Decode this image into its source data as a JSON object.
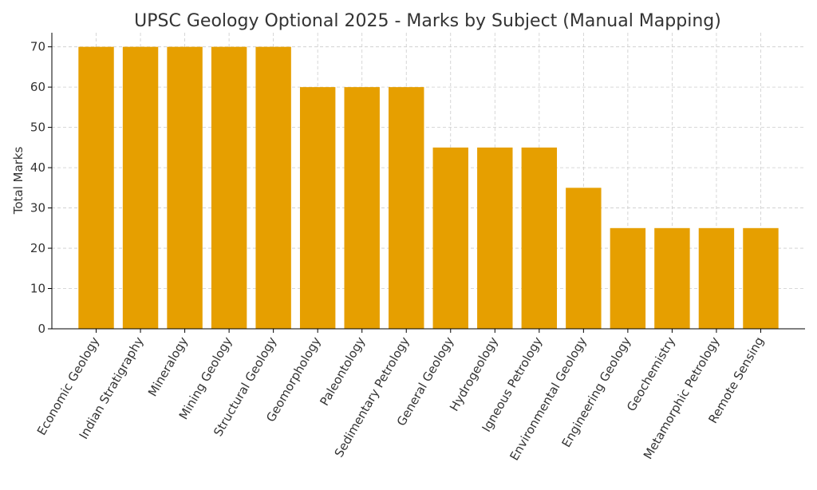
{
  "chart_data": {
    "type": "bar",
    "title": "UPSC Geology Optional 2025 - Marks by Subject (Manual Mapping)",
    "xlabel": "",
    "ylabel": "Total Marks",
    "categories": [
      "Economic Geology",
      "Indian Stratigraphy",
      "Mineralogy",
      "Mining Geology",
      "Structural Geology",
      "Geomorphology",
      "Paleontology",
      "Sedimentary Petrology",
      "General Geology",
      "Hydrogeology",
      "Igneous Petrology",
      "Environmental Geology",
      "Engineering Geology",
      "Geochemistry",
      "Metamorphic Petrology",
      "Remote Sensing"
    ],
    "values": [
      70,
      70,
      70,
      70,
      70,
      60,
      60,
      60,
      45,
      45,
      45,
      35,
      25,
      25,
      25,
      25
    ],
    "ylim": [
      0,
      73.5
    ],
    "yticks": [
      0,
      10,
      20,
      30,
      40,
      50,
      60,
      70
    ],
    "grid": true,
    "bar_color": "#E69F00"
  }
}
